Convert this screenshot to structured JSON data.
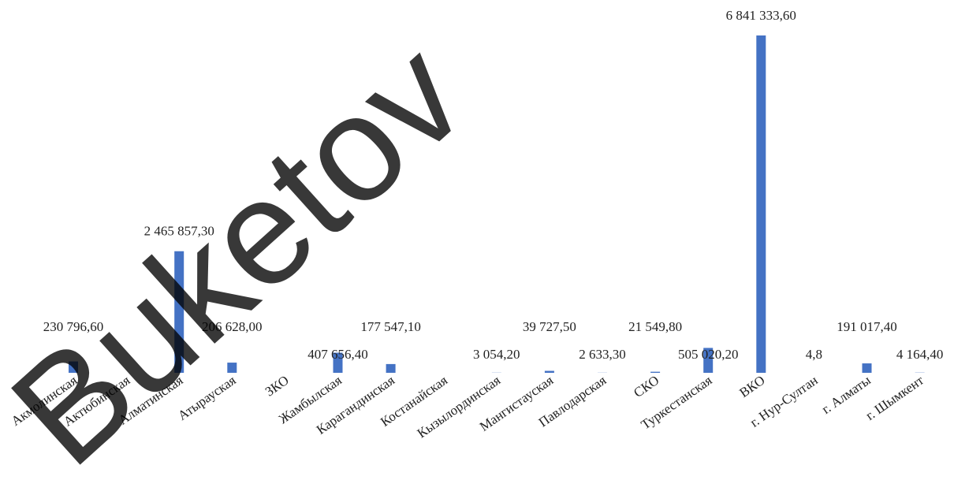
{
  "chart_data": {
    "type": "bar",
    "watermark": "Buketov",
    "categories": [
      "Акмолинская",
      "Актюбинская",
      "Алматинская",
      "Атырауская",
      "ЗКО",
      "Жамбылская",
      "Карагандинская",
      "Костанайская",
      "Кызылординская",
      "Мангистауская",
      "Павлодарская",
      "СКО",
      "Туркестанская",
      "ВКО",
      "г. Нур-Султан",
      "г. Алматы",
      "г. Шымкент"
    ],
    "values": [
      230796.6,
      null,
      2465857.3,
      206628,
      null,
      407656.4,
      177547.1,
      null,
      3054.2,
      39727.5,
      2633.3,
      21549.8,
      505020.2,
      6841333.6,
      4.8,
      191017.4,
      4164.4
    ],
    "value_labels": [
      "230 796,60",
      null,
      "2 465 857,30",
      "206 628,00",
      null,
      "407 656,40",
      "177 547,10",
      null,
      "3 054,20",
      "39 727,50",
      "2 633,30",
      "21 549,80",
      "505 020,20",
      "6 841 333,60",
      "4,8",
      "191 017,40",
      "4 164,40"
    ],
    "color": "#4472c4"
  }
}
